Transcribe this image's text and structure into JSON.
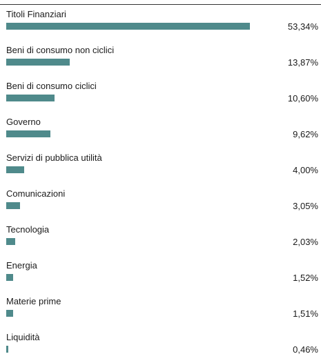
{
  "chart_data": {
    "type": "bar",
    "orientation": "horizontal",
    "categories": [
      "Titoli Finanziari",
      "Beni di consumo non ciclici",
      "Beni di consumo ciclici",
      "Governo",
      "Servizi di pubblica utilità",
      "Comunicazioni",
      "Tecnologia",
      "Energia",
      "Materie prime",
      "Liquidità"
    ],
    "values": [
      53.34,
      13.87,
      10.6,
      9.62,
      4.0,
      3.05,
      2.03,
      1.52,
      1.51,
      0.46
    ],
    "value_labels": [
      "53,34%",
      "13,87%",
      "10,60%",
      "9,62%",
      "4,00%",
      "3,05%",
      "2,03%",
      "1,52%",
      "1,51%",
      "0,46%"
    ],
    "xlim": [
      0,
      53.34
    ],
    "grid": false,
    "legend": "none"
  },
  "colors": {
    "bar": "#4f8a8b"
  }
}
